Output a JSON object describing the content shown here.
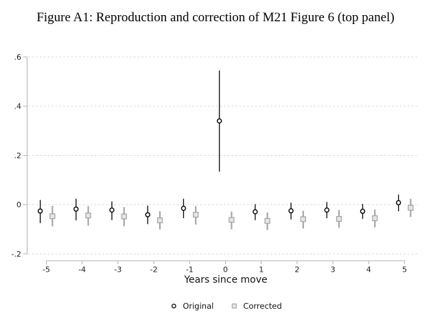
{
  "figure": {
    "title": "Figure A1: Reproduction and correction of M21 Figure 6 (top panel)"
  },
  "chart_data": {
    "type": "scatter",
    "title": "Figure A1: Reproduction and correction of M21 Figure 6 (top panel)",
    "xlabel": "Years since move",
    "ylabel": "",
    "xlim": [
      -5.6,
      5.6
    ],
    "ylim": [
      -0.2,
      0.6
    ],
    "grid": "horizontal dashed gridlines at y ticks",
    "legend_position": "bottom-center",
    "gridline_color": "#d5d5d5",
    "axis_color": "#b0b0b0",
    "yticks": [
      {
        "v": 0.6,
        "label": ".6"
      },
      {
        "v": 0.4,
        "label": ".4"
      },
      {
        "v": 0.2,
        "label": ".2"
      },
      {
        "v": 0.0,
        "label": "0"
      },
      {
        "v": -0.2,
        "label": "-.2"
      }
    ],
    "xticks": [
      {
        "v": -5,
        "label": "-5"
      },
      {
        "v": -4,
        "label": "-4"
      },
      {
        "v": -3,
        "label": "-3"
      },
      {
        "v": -2,
        "label": "-2"
      },
      {
        "v": -1,
        "label": "-1"
      },
      {
        "v": 0,
        "label": "0"
      },
      {
        "v": 1,
        "label": "1"
      },
      {
        "v": 2,
        "label": "2"
      },
      {
        "v": 3,
        "label": "3"
      },
      {
        "v": 4,
        "label": "4"
      },
      {
        "v": 5,
        "label": "5"
      }
    ],
    "series": [
      {
        "name": "Original",
        "marker": "circle",
        "color": "#0a0a0a",
        "fill": "#ffffff",
        "offset": -0.17,
        "points": [
          {
            "x": -5,
            "y": -0.026,
            "lo": -0.075,
            "hi": 0.019
          },
          {
            "x": -4,
            "y": -0.018,
            "lo": -0.064,
            "hi": 0.024
          },
          {
            "x": -3,
            "y": -0.022,
            "lo": -0.063,
            "hi": 0.013
          },
          {
            "x": -2,
            "y": -0.041,
            "lo": -0.079,
            "hi": -0.004
          },
          {
            "x": -1,
            "y": -0.015,
            "lo": -0.055,
            "hi": 0.024
          },
          {
            "x": 0,
            "y": 0.34,
            "lo": 0.134,
            "hi": 0.545
          },
          {
            "x": 1,
            "y": -0.029,
            "lo": -0.063,
            "hi": 0.002
          },
          {
            "x": 2,
            "y": -0.025,
            "lo": -0.06,
            "hi": 0.008
          },
          {
            "x": 3,
            "y": -0.022,
            "lo": -0.055,
            "hi": 0.011
          },
          {
            "x": 4,
            "y": -0.027,
            "lo": -0.058,
            "hi": 0.003
          },
          {
            "x": 5,
            "y": 0.008,
            "lo": -0.027,
            "hi": 0.041
          }
        ]
      },
      {
        "name": "Corrected",
        "marker": "square",
        "color": "#a6a6a6",
        "fill": "#e6e6e6",
        "offset": 0.17,
        "points": [
          {
            "x": -5,
            "y": -0.047,
            "lo": -0.088,
            "hi": -0.005
          },
          {
            "x": -4,
            "y": -0.044,
            "lo": -0.085,
            "hi": -0.006
          },
          {
            "x": -3,
            "y": -0.048,
            "lo": -0.088,
            "hi": -0.01
          },
          {
            "x": -2,
            "y": -0.064,
            "lo": -0.101,
            "hi": -0.027
          },
          {
            "x": -1,
            "y": -0.041,
            "lo": -0.081,
            "hi": -0.006
          },
          {
            "x": 0,
            "y": -0.062,
            "lo": -0.1,
            "hi": -0.028
          },
          {
            "x": 1,
            "y": -0.066,
            "lo": -0.103,
            "hi": -0.032
          },
          {
            "x": 2,
            "y": -0.059,
            "lo": -0.097,
            "hi": -0.025
          },
          {
            "x": 3,
            "y": -0.058,
            "lo": -0.094,
            "hi": -0.022
          },
          {
            "x": 4,
            "y": -0.055,
            "lo": -0.092,
            "hi": -0.02
          },
          {
            "x": 5,
            "y": -0.013,
            "lo": -0.05,
            "hi": 0.024
          }
        ]
      }
    ]
  }
}
